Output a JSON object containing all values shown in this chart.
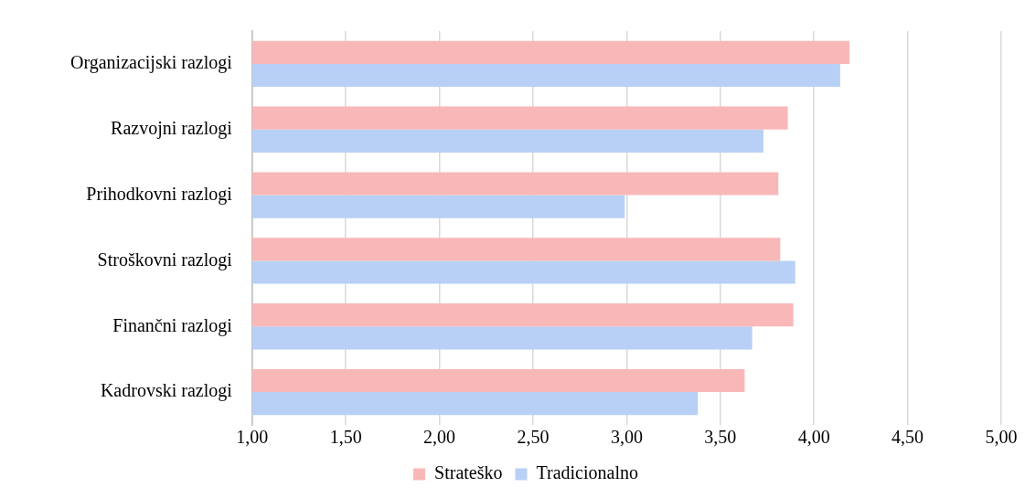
{
  "chart_data": {
    "type": "bar",
    "orientation": "horizontal",
    "categories": [
      "Organizacijski razlogi",
      "Razvojni razlogi",
      "Prihodkovni razlogi",
      "Stroškovni razlogi",
      "Finančni razlogi",
      "Kadrovski razlogi"
    ],
    "series": [
      {
        "name": "Strateško",
        "color": "#f9b8b8",
        "values": [
          4.19,
          3.86,
          3.81,
          3.82,
          3.89,
          3.63
        ]
      },
      {
        "name": "Tradicionalno",
        "color": "#b8d0f5",
        "values": [
          4.14,
          3.73,
          2.99,
          3.9,
          3.67,
          3.38
        ]
      }
    ],
    "xlim": [
      1,
      5
    ],
    "xticks": [
      {
        "value": 1,
        "label": "1,00"
      },
      {
        "value": 1.5,
        "label": "1,50"
      },
      {
        "value": 2,
        "label": "2,00"
      },
      {
        "value": 2.5,
        "label": "2,50"
      },
      {
        "value": 3,
        "label": "3,00"
      },
      {
        "value": 3.5,
        "label": "3,50"
      },
      {
        "value": 4,
        "label": "4,00"
      },
      {
        "value": 4.5,
        "label": "4,50"
      },
      {
        "value": 5,
        "label": "5,00"
      }
    ],
    "grid": "x",
    "legend": "bottom"
  }
}
